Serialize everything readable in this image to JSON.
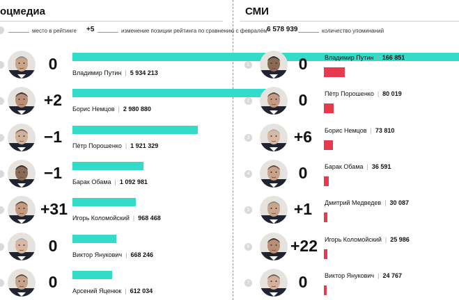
{
  "headers": {
    "left": "оцмедиа",
    "right": "СМИ"
  },
  "legend": {
    "rank_text": "место в рейтинге",
    "change_example": "+5",
    "change_text": "изменение позиции рейтинга по сравнению с февралём",
    "count_example": "6 578 939",
    "count_text": "количество упоминаний"
  },
  "colors": {
    "bar_social": "#33dcc8",
    "bar_media": "#e83a4c"
  },
  "chart_data": [
    {
      "type": "bar",
      "title": "оцмедиа",
      "categories": [
        "Владимир Путин",
        "Борис Немцов",
        "Пётр Порошенко",
        "Барак Обама",
        "Игорь Коломойский",
        "Виктор Янукович",
        "Арсений Яценюк"
      ],
      "values": [
        5934213,
        2980880,
        1921329,
        1092981,
        968468,
        668246,
        612034
      ],
      "value_labels": [
        "5 934 213",
        "2 980 880",
        "1 921 329",
        "1 092 981",
        "968 468",
        "668 246",
        "612 034"
      ],
      "changes": [
        "0",
        "+2",
        "−1",
        "−1",
        "+31",
        "0",
        "0"
      ]
    },
    {
      "type": "bar",
      "title": "СМИ",
      "categories": [
        "Владимир Путин",
        "Пётр Порошенко",
        "Борис Немцов",
        "Барак Обама",
        "Дмитрий Медведев",
        "Игорь Коломойский",
        "Виктор Янукович"
      ],
      "values": [
        166851,
        80019,
        73810,
        36591,
        30087,
        25986,
        24767
      ],
      "value_labels": [
        "166 851",
        "80 019",
        "73 810",
        "36 591",
        "30 087",
        "25 986",
        "24 767"
      ],
      "ranks": [
        "1",
        "2",
        "3",
        "4",
        "5",
        "6",
        "7"
      ],
      "changes": [
        "0",
        "0",
        "+6",
        "0",
        "+1",
        "+22",
        "0"
      ]
    }
  ]
}
